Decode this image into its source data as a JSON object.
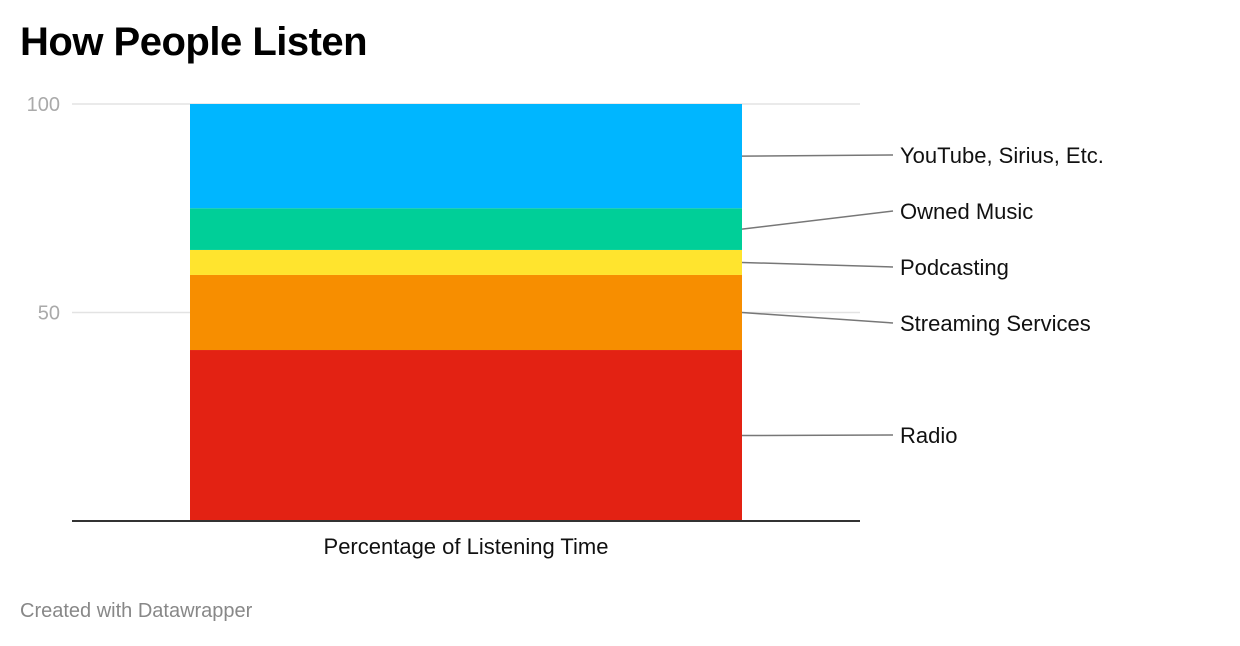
{
  "title": "How People Listen",
  "credit": "Created with Datawrapper",
  "chart_data": {
    "type": "bar",
    "stacked": true,
    "categories": [
      "Percentage of Listening Time"
    ],
    "series": [
      {
        "name": "Radio",
        "values": [
          41
        ],
        "color": "#e32213"
      },
      {
        "name": "Streaming Services",
        "values": [
          18
        ],
        "color": "#f78e00"
      },
      {
        "name": "Podcasting",
        "values": [
          6
        ],
        "color": "#ffe42e"
      },
      {
        "name": "Owned Music",
        "values": [
          10
        ],
        "color": "#00cf98"
      },
      {
        "name": "YouTube, Sirius, Etc.",
        "values": [
          25
        ],
        "color": "#00b6ff"
      }
    ],
    "ylim": [
      0,
      100
    ],
    "yticks": [
      "50",
      "100"
    ],
    "grid": true,
    "legend": "right, direct labels with leader lines"
  }
}
